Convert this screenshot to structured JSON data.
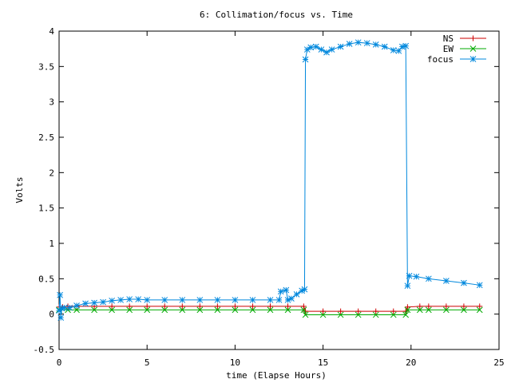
{
  "chart_data": {
    "type": "line",
    "title": "6: Collimation/focus vs. Time",
    "xlabel": "time (Elapse Hours)",
    "ylabel": "Volts",
    "xlim": [
      0,
      25
    ],
    "ylim": [
      -0.5,
      4
    ],
    "x_ticks": [
      {
        "value": 0,
        "label": "0"
      },
      {
        "value": 5,
        "label": "5"
      },
      {
        "value": 10,
        "label": "10"
      },
      {
        "value": 15,
        "label": "15"
      },
      {
        "value": 20,
        "label": "20"
      },
      {
        "value": 25,
        "label": "25"
      }
    ],
    "y_ticks": [
      {
        "value": -0.5,
        "label": "-0.5"
      },
      {
        "value": 0,
        "label": "0"
      },
      {
        "value": 0.5,
        "label": "0.5"
      },
      {
        "value": 1,
        "label": "1"
      },
      {
        "value": 1.5,
        "label": "1.5"
      },
      {
        "value": 2,
        "label": "2"
      },
      {
        "value": 2.5,
        "label": "2.5"
      },
      {
        "value": 3,
        "label": "3"
      },
      {
        "value": 3.5,
        "label": "3.5"
      },
      {
        "value": 4,
        "label": "4"
      }
    ],
    "grid": false,
    "legend_position": "top-right",
    "series": [
      {
        "name": "NS",
        "color": "#cc0000",
        "marker": "plus",
        "points": [
          [
            0,
            0.1
          ],
          [
            0.2,
            0.1
          ],
          [
            0.5,
            0.11
          ],
          [
            1,
            0.11
          ],
          [
            2,
            0.11
          ],
          [
            3,
            0.11
          ],
          [
            4,
            0.11
          ],
          [
            5,
            0.11
          ],
          [
            6,
            0.11
          ],
          [
            7,
            0.11
          ],
          [
            8,
            0.11
          ],
          [
            9,
            0.11
          ],
          [
            10,
            0.11
          ],
          [
            11,
            0.11
          ],
          [
            12,
            0.11
          ],
          [
            13,
            0.11
          ],
          [
            13.9,
            0.11
          ],
          [
            14.0,
            0.04
          ],
          [
            15,
            0.04
          ],
          [
            16,
            0.04
          ],
          [
            17,
            0.04
          ],
          [
            18,
            0.04
          ],
          [
            19,
            0.04
          ],
          [
            19.7,
            0.04
          ],
          [
            19.8,
            0.1
          ],
          [
            20.5,
            0.11
          ],
          [
            21,
            0.11
          ],
          [
            22,
            0.11
          ],
          [
            23,
            0.11
          ],
          [
            23.9,
            0.11
          ]
        ]
      },
      {
        "name": "EW",
        "color": "#00aa00",
        "marker": "x",
        "points": [
          [
            0,
            0.06
          ],
          [
            0.5,
            0.06
          ],
          [
            1,
            0.06
          ],
          [
            2,
            0.06
          ],
          [
            3,
            0.06
          ],
          [
            4,
            0.06
          ],
          [
            5,
            0.06
          ],
          [
            6,
            0.06
          ],
          [
            7,
            0.06
          ],
          [
            8,
            0.06
          ],
          [
            9,
            0.06
          ],
          [
            10,
            0.06
          ],
          [
            11,
            0.06
          ],
          [
            12,
            0.06
          ],
          [
            13,
            0.06
          ],
          [
            13.9,
            0.06
          ],
          [
            14.0,
            -0.01
          ],
          [
            15,
            -0.01
          ],
          [
            16,
            -0.01
          ],
          [
            17,
            -0.01
          ],
          [
            18,
            -0.01
          ],
          [
            19,
            -0.01
          ],
          [
            19.7,
            -0.01
          ],
          [
            19.8,
            0.06
          ],
          [
            20.5,
            0.06
          ],
          [
            21,
            0.06
          ],
          [
            22,
            0.06
          ],
          [
            23,
            0.06
          ],
          [
            23.9,
            0.06
          ]
        ]
      },
      {
        "name": "focus",
        "color": "#0088dd",
        "marker": "star",
        "points": [
          [
            0,
            0.05
          ],
          [
            0.05,
            0.27
          ],
          [
            0.1,
            -0.05
          ],
          [
            0.15,
            0.08
          ],
          [
            0.3,
            0.09
          ],
          [
            0.6,
            0.09
          ],
          [
            1,
            0.12
          ],
          [
            1.5,
            0.15
          ],
          [
            2,
            0.16
          ],
          [
            2.5,
            0.17
          ],
          [
            3,
            0.19
          ],
          [
            3.5,
            0.2
          ],
          [
            4,
            0.21
          ],
          [
            4.5,
            0.21
          ],
          [
            5,
            0.2
          ],
          [
            6,
            0.2
          ],
          [
            7,
            0.2
          ],
          [
            8,
            0.2
          ],
          [
            9,
            0.2
          ],
          [
            10,
            0.2
          ],
          [
            11,
            0.2
          ],
          [
            12,
            0.2
          ],
          [
            12.5,
            0.2
          ],
          [
            12.6,
            0.32
          ],
          [
            12.9,
            0.34
          ],
          [
            13.0,
            0.2
          ],
          [
            13.2,
            0.22
          ],
          [
            13.5,
            0.28
          ],
          [
            13.8,
            0.33
          ],
          [
            13.95,
            0.35
          ],
          [
            14.0,
            3.6
          ],
          [
            14.1,
            3.74
          ],
          [
            14.3,
            3.77
          ],
          [
            14.6,
            3.78
          ],
          [
            14.9,
            3.74
          ],
          [
            15.2,
            3.7
          ],
          [
            15.5,
            3.74
          ],
          [
            16,
            3.78
          ],
          [
            16.5,
            3.82
          ],
          [
            17,
            3.84
          ],
          [
            17.5,
            3.83
          ],
          [
            18,
            3.81
          ],
          [
            18.5,
            3.78
          ],
          [
            19,
            3.73
          ],
          [
            19.3,
            3.72
          ],
          [
            19.5,
            3.78
          ],
          [
            19.7,
            3.79
          ],
          [
            19.8,
            0.4
          ],
          [
            19.9,
            0.54
          ],
          [
            20.3,
            0.53
          ],
          [
            21,
            0.5
          ],
          [
            22,
            0.47
          ],
          [
            23,
            0.44
          ],
          [
            23.9,
            0.41
          ]
        ]
      }
    ]
  }
}
